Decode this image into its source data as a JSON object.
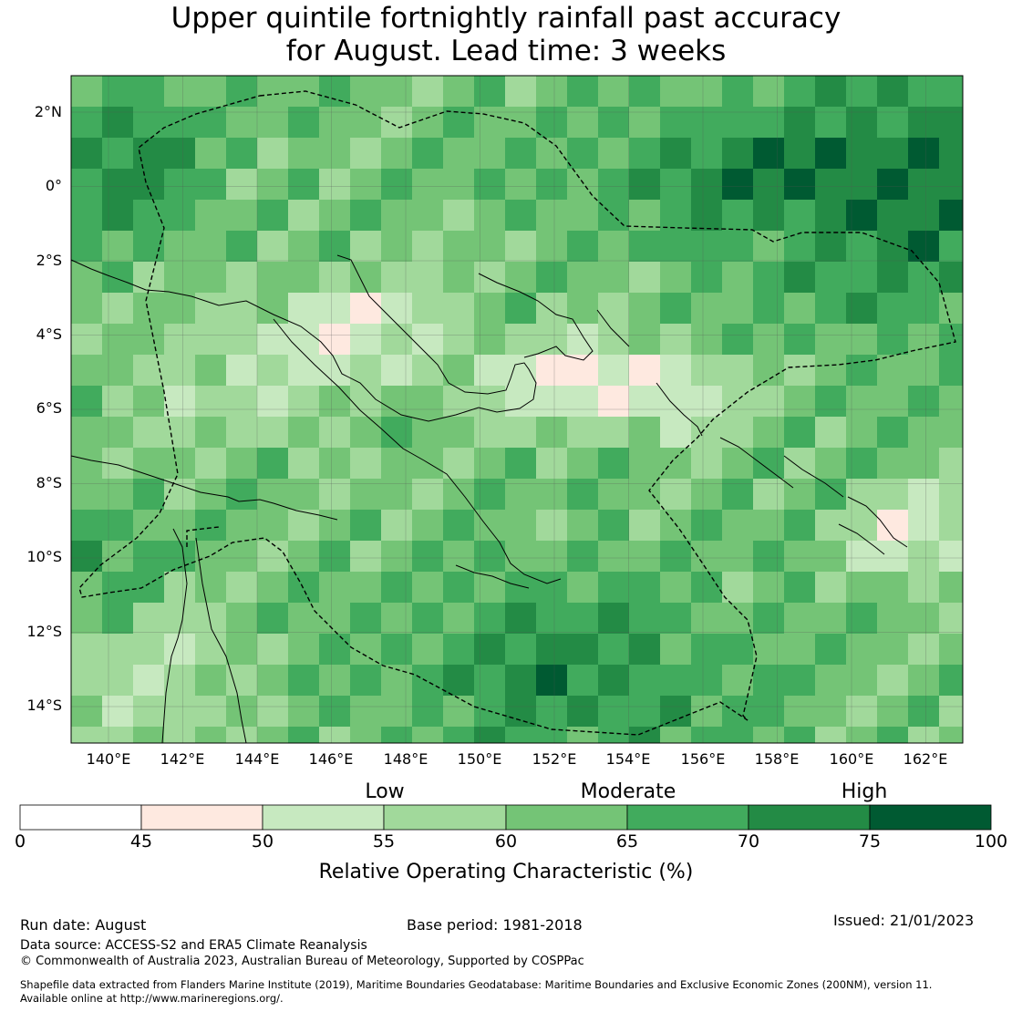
{
  "title": {
    "line1": "Upper quintile fortnightly rainfall past accuracy",
    "line2": "for August. Lead time: 3 weeks"
  },
  "map": {
    "lat_labels": [
      "2°N",
      "0°",
      "2°S",
      "4°S",
      "6°S",
      "8°S",
      "10°S",
      "12°S",
      "14°S"
    ],
    "lon_labels": [
      "140°E",
      "142°E",
      "144°E",
      "146°E",
      "148°E",
      "150°E",
      "152°E",
      "154°E",
      "156°E",
      "158°E",
      "160°E",
      "162°E"
    ]
  },
  "colorbar": {
    "bands": [
      "Low",
      "Moderate",
      "High"
    ],
    "ticks": [
      "0",
      "45",
      "50",
      "55",
      "60",
      "65",
      "70",
      "75",
      "100"
    ],
    "colors": [
      "#ffffff",
      "#fee9e0",
      "#c7e9c0",
      "#a1d99b",
      "#74c476",
      "#41ab5d",
      "#238b45",
      "#005a32"
    ],
    "label": "Relative Operating Characteristic (%)"
  },
  "footer": {
    "run_date": "Run date: August",
    "base_period": "Base period: 1981-2018",
    "issued": "Issued: 21/01/2023",
    "data_source": "Data source: ACCESS-S2 and ERA5 Climate Reanalysis",
    "copyright": "© Commonwealth of Australia 2023, Australian Bureau of Meteorology, Supported by COSPPac",
    "shapefile_line1": "Shapefile data extracted from Flanders Marine Institute (2019), Maritime Boundaries Geodatabase: Maritime Boundaries and Exclusive Economic Zones (200NM), version 11.",
    "shapefile_line2": "Available online at http://www.marineregions.org/."
  }
}
